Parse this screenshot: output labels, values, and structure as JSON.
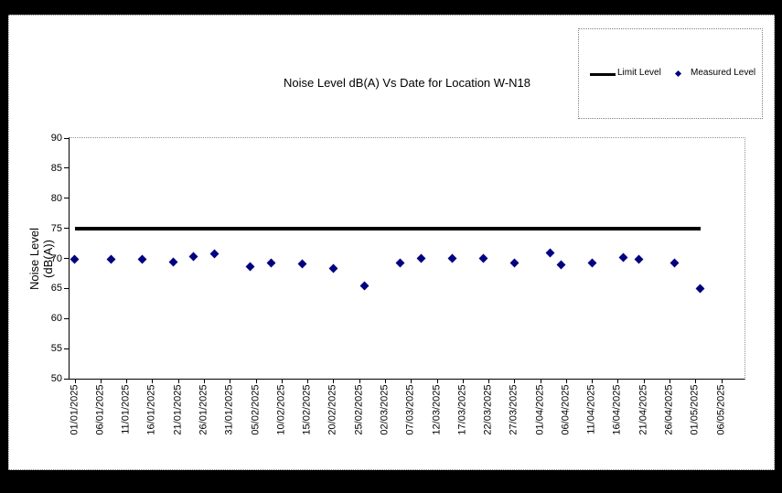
{
  "title": "Noise Level dB(A) Vs Date for Location W-N18",
  "y_axis_title": {
    "line1": "Noise Level",
    "line2": "(dB(A))"
  },
  "legend": {
    "limit_label": "Limit Level",
    "measured_label": "Measured Level"
  },
  "colors": {
    "measured_point": "#000080",
    "limit_line": "#000000",
    "chart_border": "#909090",
    "frame": "#000000"
  },
  "chart_data": {
    "type": "scatter",
    "title": "Noise Level dB(A) Vs Date for Location W-N18",
    "xlabel": "",
    "ylabel": "Noise Level (dB(A))",
    "ylim": [
      50,
      90
    ],
    "y_ticks": [
      50,
      55,
      60,
      65,
      70,
      75,
      80,
      85,
      90
    ],
    "x_tick_labels": [
      "01/01/2025",
      "06/01/2025",
      "11/01/2025",
      "16/01/2025",
      "21/01/2025",
      "26/01/2025",
      "31/01/2025",
      "05/02/2025",
      "10/02/2025",
      "15/02/2025",
      "20/02/2025",
      "25/02/2025",
      "02/03/2025",
      "07/03/2025",
      "12/03/2025",
      "17/03/2025",
      "22/03/2025",
      "27/03/2025",
      "01/04/2025",
      "06/04/2025",
      "11/04/2025",
      "16/04/2025",
      "21/04/2025",
      "26/04/2025",
      "01/05/2025",
      "06/05/2025"
    ],
    "grid": false,
    "legend_position": "top-right",
    "series": [
      {
        "name": "Limit Level",
        "type": "line",
        "color": "#000000",
        "value": 75,
        "x_start": "01/01/2025",
        "x_end": "02/05/2025"
      },
      {
        "name": "Measured Level",
        "type": "scatter",
        "color": "#000080",
        "points": [
          {
            "date": "01/01/2025",
            "value": 69.8
          },
          {
            "date": "08/01/2025",
            "value": 69.8
          },
          {
            "date": "14/01/2025",
            "value": 69.8
          },
          {
            "date": "20/01/2025",
            "value": 69.4
          },
          {
            "date": "24/01/2025",
            "value": 70.3
          },
          {
            "date": "28/01/2025",
            "value": 70.7
          },
          {
            "date": "04/02/2025",
            "value": 68.6
          },
          {
            "date": "08/02/2025",
            "value": 69.2
          },
          {
            "date": "14/02/2025",
            "value": 69.1
          },
          {
            "date": "20/02/2025",
            "value": 68.4
          },
          {
            "date": "26/02/2025",
            "value": 65.5
          },
          {
            "date": "05/03/2025",
            "value": 69.2
          },
          {
            "date": "09/03/2025",
            "value": 70.0
          },
          {
            "date": "15/03/2025",
            "value": 70.0
          },
          {
            "date": "21/03/2025",
            "value": 70.0
          },
          {
            "date": "27/03/2025",
            "value": 69.2
          },
          {
            "date": "03/04/2025",
            "value": 70.9
          },
          {
            "date": "05/04/2025",
            "value": 69.0
          },
          {
            "date": "11/04/2025",
            "value": 69.3
          },
          {
            "date": "17/04/2025",
            "value": 70.1
          },
          {
            "date": "20/04/2025",
            "value": 69.8
          },
          {
            "date": "27/04/2025",
            "value": 69.3
          },
          {
            "date": "02/05/2025",
            "value": 65.0
          }
        ]
      }
    ]
  }
}
